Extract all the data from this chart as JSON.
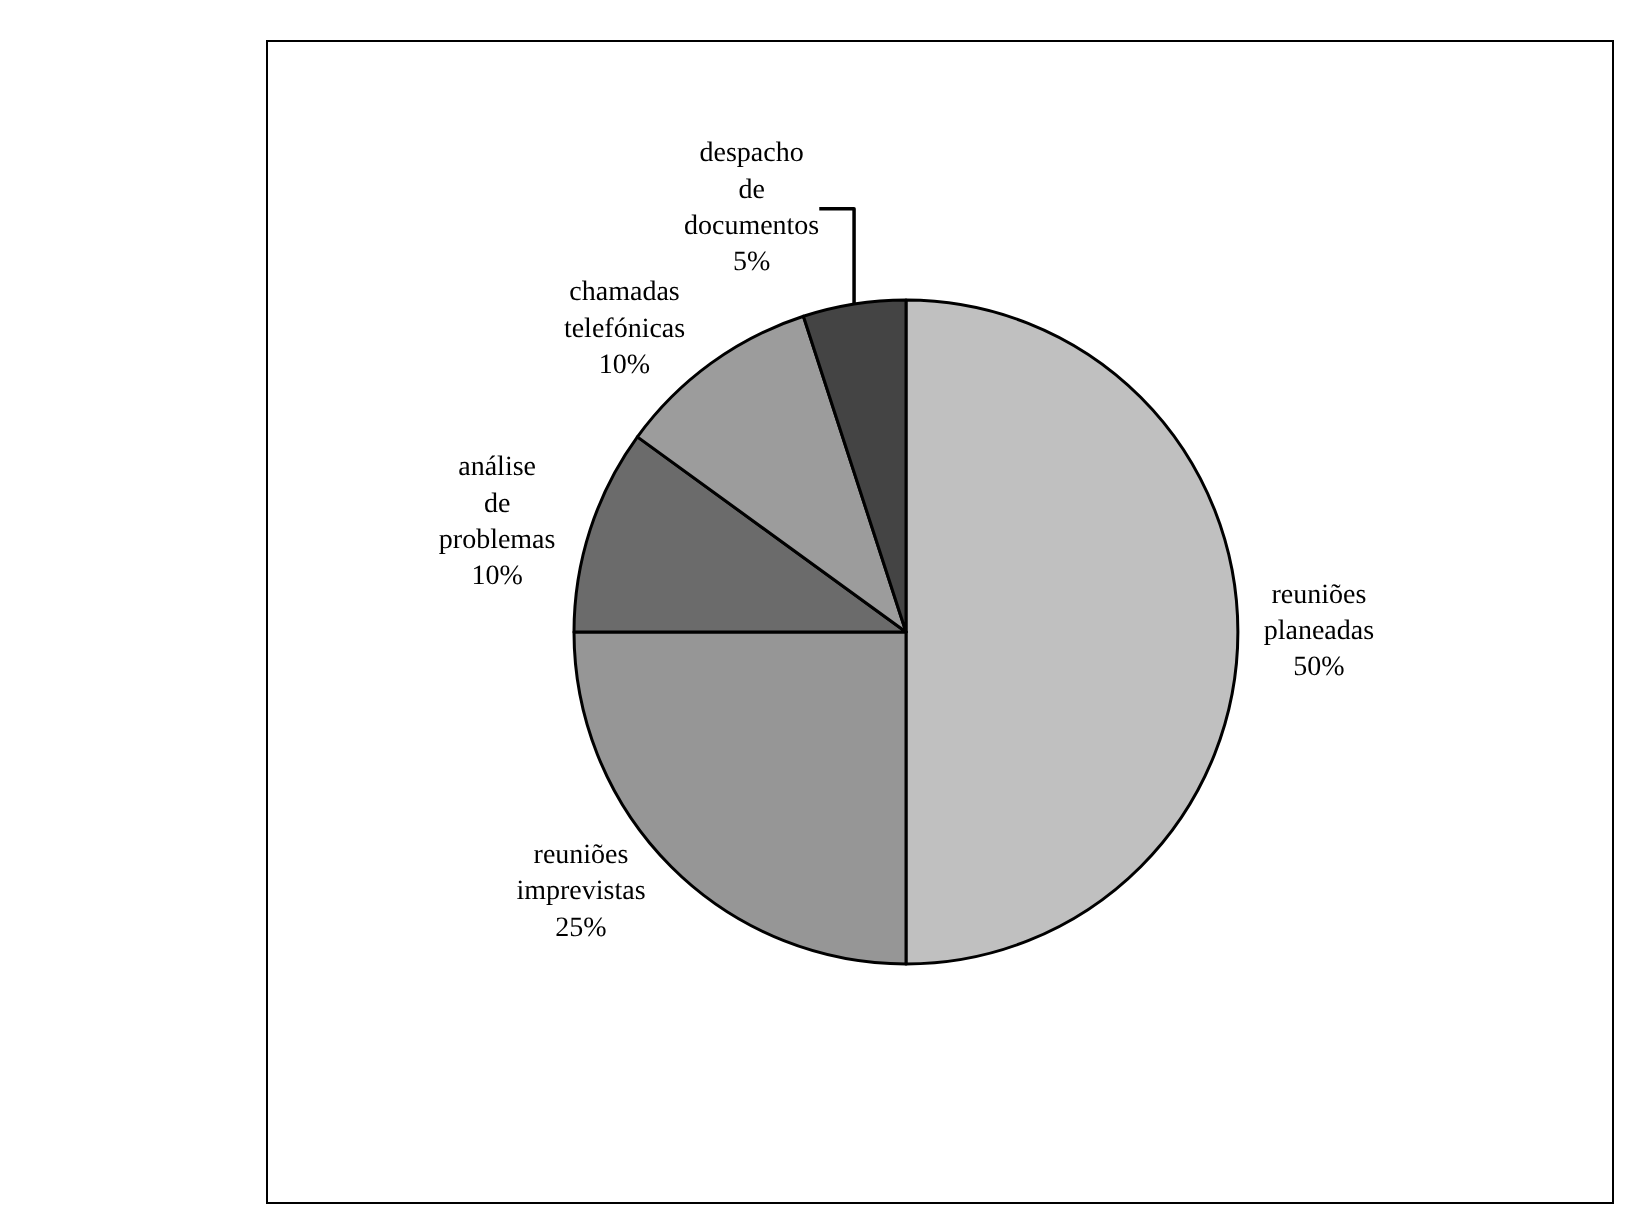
{
  "chart_data": {
    "type": "pie",
    "categories": [
      "reuniões planeadas",
      "reuniões imprevistas",
      "análise de problemas",
      "chamadas telefónicas",
      "despacho de documentos"
    ],
    "values": [
      50,
      25,
      10,
      10,
      5
    ],
    "value_labels": [
      "50%",
      "25%",
      "10%",
      "10%",
      "5%"
    ],
    "colors": [
      "#c0c0c0",
      "#969696",
      "#6b6b6b",
      "#9c9c9c",
      "#444444"
    ],
    "legend": false
  }
}
